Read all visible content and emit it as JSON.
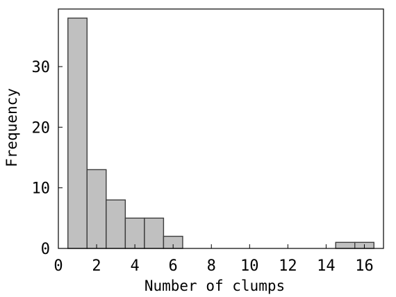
{
  "chart_data": {
    "type": "bar",
    "title": "",
    "xlabel": "Number of clumps",
    "ylabel": "Frequency",
    "xlim": [
      0,
      17
    ],
    "ylim": [
      0,
      39.5
    ],
    "x_ticks": [
      0,
      2,
      4,
      6,
      8,
      10,
      12,
      14,
      16
    ],
    "y_ticks": [
      0,
      10,
      20,
      30
    ],
    "bin_width": 1,
    "bins": [
      {
        "x": 1,
        "count": 38
      },
      {
        "x": 2,
        "count": 13
      },
      {
        "x": 3,
        "count": 8
      },
      {
        "x": 4,
        "count": 5
      },
      {
        "x": 5,
        "count": 5
      },
      {
        "x": 6,
        "count": 2
      },
      {
        "x": 15,
        "count": 1
      },
      {
        "x": 16,
        "count": 1
      }
    ],
    "grid": false,
    "bar_fill": "#c0c0c0",
    "bar_stroke": "#3c3c3c"
  }
}
